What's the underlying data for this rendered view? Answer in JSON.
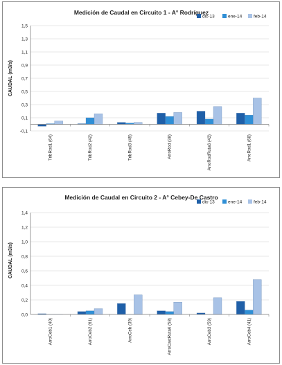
{
  "colors": {
    "dic-13": "#1f5fa8",
    "ene-14": "#2f8fd6",
    "feb-14": "#a8c2e6",
    "grid": "#cfcfcf",
    "axis": "#7f7f7f"
  },
  "chart_data": [
    {
      "type": "bar",
      "title": "Medición de Caudal en Circuito 1 - A° Rodríguez",
      "ylabel": "CAUDAL (m3/s)",
      "xlabel": "",
      "ylim": [
        -0.1,
        1.5
      ],
      "yticks": [
        "-0,1",
        "0,1",
        "0,3",
        "0,5",
        "0,7",
        "0,9",
        "1,1",
        "1,3",
        "1,5"
      ],
      "ytick_values": [
        -0.1,
        0.1,
        0.3,
        0.5,
        0.7,
        0.9,
        1.1,
        1.3,
        1.5
      ],
      "grid": true,
      "legend_position": "top-right",
      "categories": [
        "TribRod1 (64)",
        "TribRod2 (42)",
        "TribRod3 (49)",
        "ArroRod (38)",
        "ArroRodRuta6 (43)",
        "ArroRod1 (68)"
      ],
      "series": [
        {
          "name": "dic-13",
          "values": [
            -0.03,
            0.01,
            0.03,
            0.17,
            0.2,
            0.17
          ]
        },
        {
          "name": "ene-14",
          "values": [
            0.01,
            0.1,
            0.02,
            0.12,
            0.08,
            0.14
          ]
        },
        {
          "name": "feb-14",
          "values": [
            0.05,
            0.16,
            0.03,
            0.18,
            0.27,
            0.4
          ]
        }
      ]
    },
    {
      "type": "bar",
      "title": "Medición de Caudal en Circuito 2 - A° Cebey-De Castro",
      "ylabel": "CAUDAL (m3/s)",
      "xlabel": "",
      "ylim": [
        0,
        1.4
      ],
      "yticks": [
        "0,0",
        "0,2",
        "0,4",
        "0,6",
        "0,8",
        "1,0",
        "1,2",
        "1,4"
      ],
      "ytick_values": [
        0,
        0.2,
        0.4,
        0.6,
        0.8,
        1.0,
        1.2,
        1.4
      ],
      "grid": true,
      "legend_position": "top-right",
      "categories": [
        "ArroCeb1 (40)",
        "ArroCeb2 (61)",
        "ArroCeb (39)",
        "ArroCastRuta6 (58)",
        "ArroCeb3 (59)",
        "ArroCeb4 (41)"
      ],
      "series": [
        {
          "name": "dic-13",
          "values": [
            0.01,
            0.04,
            0.15,
            0.05,
            0.02,
            0.18
          ]
        },
        {
          "name": "ene-14",
          "values": [
            0.0,
            0.05,
            0.0,
            0.04,
            0.0,
            0.06
          ]
        },
        {
          "name": "feb-14",
          "values": [
            0.0,
            0.08,
            0.27,
            0.17,
            0.23,
            0.48
          ]
        }
      ]
    }
  ]
}
